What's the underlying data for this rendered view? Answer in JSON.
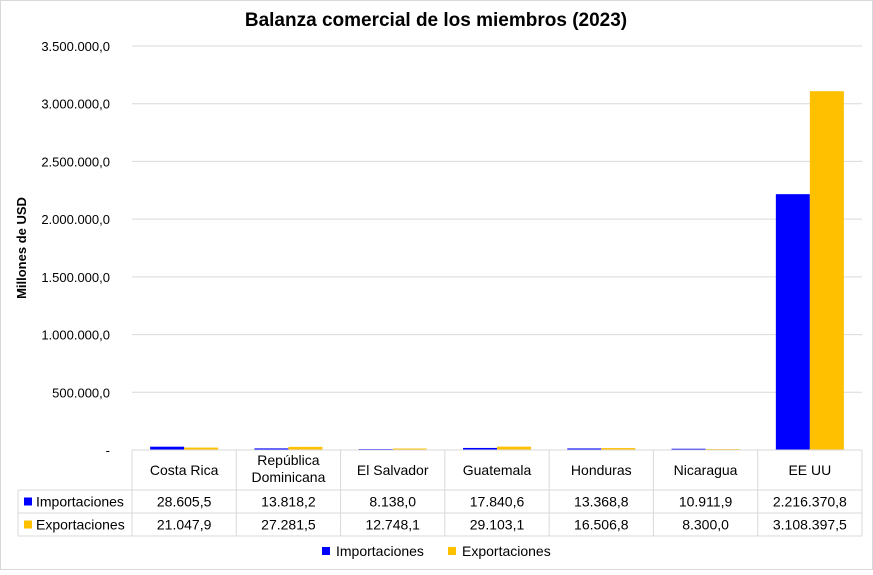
{
  "chart_data": {
    "type": "bar",
    "title": "Balanza comercial de los miembros (2023)",
    "ylabel": "Millones de USD",
    "xlabel": "",
    "ylim": [
      0,
      3500000
    ],
    "yticks": [
      0,
      500000,
      1000000,
      1500000,
      2000000,
      2500000,
      3000000,
      3500000
    ],
    "ytick_labels": [
      "-",
      "500.000,0",
      "1.000.000,0",
      "1.500.000,0",
      "2.000.000,0",
      "2.500.000,0",
      "3.000.000,0",
      "3.500.000,0"
    ],
    "grid": true,
    "legend_position": "bottom",
    "categories": [
      [
        "Costa Rica"
      ],
      [
        "República",
        "Dominicana"
      ],
      [
        "El Salvador"
      ],
      [
        "Guatemala"
      ],
      [
        "Honduras"
      ],
      [
        "Nicaragua"
      ],
      [
        "EE UU"
      ]
    ],
    "series": [
      {
        "name": "Importaciones",
        "color": "#0000FF",
        "values": [
          28605.5,
          13818.2,
          8138.0,
          17840.6,
          13368.8,
          10911.9,
          2216370.8
        ],
        "labels": [
          "28.605,5",
          "13.818,2",
          "8.138,0",
          "17.840,6",
          "13.368,8",
          "10.911,9",
          "2.216.370,8"
        ]
      },
      {
        "name": "Exportaciones",
        "color": "#FFC000",
        "values": [
          21047.9,
          27281.5,
          12748.1,
          29103.1,
          16506.8,
          8300.0,
          3108397.5
        ],
        "labels": [
          "21.047,9",
          "27.281,5",
          "12.748,1",
          "29.103,1",
          "16.506,8",
          "8.300,0",
          "3.108.397,5"
        ]
      }
    ]
  }
}
